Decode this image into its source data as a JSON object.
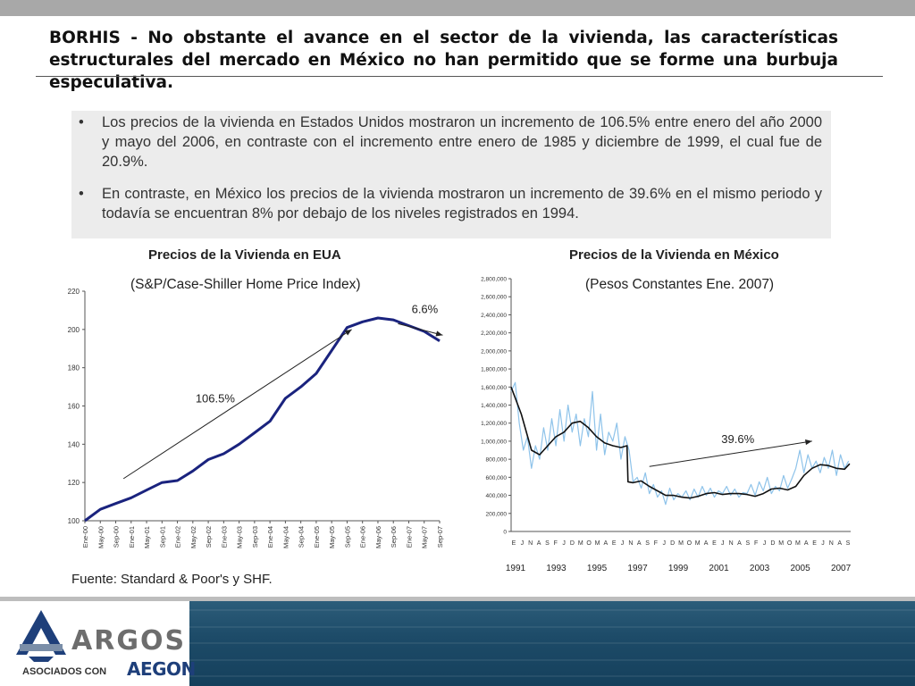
{
  "headline": "BORHIS - No obstante el avance en el sector de la vivienda, las características estructurales del mercado en México no han permitido que se forme una burbuja especulativa.",
  "bullets": [
    "Los precios de la vivienda en Estados Unidos mostraron un incremento de 106.5% entre enero del año 2000 y mayo del 2006, en contraste con el incremento entre enero de 1985 y diciembre de 1999, el cual fue de 20.9%.",
    "En contraste, en México los precios de la vivienda mostraron un incremento de 39.6% en el mismo periodo y todavía se encuentran 8% por debajo de los niveles registrados en 1994."
  ],
  "source": "Fuente: Standard & Poor's y SHF.",
  "logo": {
    "name": "ARGOS",
    "tagline": "ASOCIADOS CON",
    "partner": "AEGON"
  },
  "chart_data": [
    {
      "type": "line",
      "title": "Precios de la Vivienda en EUA",
      "subtitle": "(S&P/Case-Shiller Home Price Index)",
      "color": "#1a237e",
      "ylim": [
        100,
        220
      ],
      "yticks": [
        100,
        120,
        140,
        160,
        180,
        200,
        220
      ],
      "xtick_labels": [
        "Ene-00",
        "May-00",
        "Sep-00",
        "Ene-01",
        "May-01",
        "Sep-01",
        "Ene-02",
        "May-02",
        "Sep-02",
        "Ene-03",
        "May-03",
        "Sep-03",
        "Ene-04",
        "May-04",
        "Sep-04",
        "Ene-05",
        "May-05",
        "Sep-05",
        "Ene-06",
        "May-06",
        "Sep-06",
        "Ene-07",
        "May-07",
        "Sep-07"
      ],
      "series": [
        {
          "x": [
            0,
            1,
            2,
            3,
            4,
            5,
            6,
            7,
            8,
            9,
            10,
            11,
            12,
            13,
            14,
            15,
            16,
            17,
            18,
            19,
            20,
            21,
            22,
            23
          ],
          "values": [
            100,
            106,
            109,
            112,
            116,
            120,
            121,
            126,
            132,
            135,
            140,
            146,
            152,
            164,
            170,
            177,
            189,
            201,
            204,
            206,
            205,
            202,
            199,
            194
          ]
        }
      ],
      "annotations": [
        {
          "text": "106.5%",
          "from": [
            2.5,
            122
          ],
          "to": [
            17.3,
            200
          ]
        },
        {
          "text": "6.6%",
          "from": [
            20.3,
            203
          ],
          "to": [
            23.2,
            197
          ]
        }
      ]
    },
    {
      "type": "line",
      "title": "Precios de la Vivienda en México",
      "subtitle": "(Pesos Constantes Ene. 2007)",
      "ylim": [
        0,
        2800000
      ],
      "yticks": [
        0,
        200000,
        400000,
        600000,
        800000,
        1000000,
        1200000,
        1400000,
        1600000,
        1800000,
        2000000,
        2200000,
        2400000,
        2600000,
        2800000
      ],
      "ytick_labels": [
        "0",
        "200,000",
        "400,000",
        "600,000",
        "800,000",
        "1,000,000",
        "1,200,000",
        "1,400,000",
        "1,600,000",
        "1,800,000",
        "2,000,000",
        "2,200,000",
        "2,400,000",
        "2,600,000",
        "2,800,000"
      ],
      "month_labels": [
        "E",
        "J",
        "N",
        "A",
        "S",
        "F",
        "J",
        "D",
        "M",
        "O",
        "M",
        "A",
        "E",
        "J",
        "N",
        "A",
        "S",
        "F",
        "J",
        "D",
        "M",
        "O",
        "M",
        "A",
        "E",
        "J",
        "N",
        "A",
        "S",
        "F",
        "J",
        "D",
        "M",
        "O",
        "M",
        "A",
        "E",
        "J",
        "N",
        "A",
        "S"
      ],
      "year_labels": [
        "1991",
        "1993",
        "1995",
        "1997",
        "1999",
        "2001",
        "2003",
        "2005",
        "2007"
      ],
      "xlim": [
        1991,
        2007.7
      ],
      "series": [
        {
          "style": "raw",
          "color": "#8ec3ea",
          "x": [
            1991.0,
            1991.2,
            1991.4,
            1991.6,
            1991.8,
            1992.0,
            1992.2,
            1992.4,
            1992.6,
            1992.8,
            1993.0,
            1993.2,
            1993.4,
            1993.6,
            1993.8,
            1994.0,
            1994.2,
            1994.4,
            1994.6,
            1994.8,
            1995.0,
            1995.2,
            1995.4,
            1995.6,
            1995.8,
            1996.0,
            1996.2,
            1996.4,
            1996.6,
            1996.8,
            1997.0,
            1997.2,
            1997.4,
            1997.6,
            1997.8,
            1998.0,
            1998.2,
            1998.4,
            1998.6,
            1998.8,
            1999.0,
            1999.2,
            1999.4,
            1999.6,
            1999.8,
            2000.0,
            2000.2,
            2000.4,
            2000.6,
            2000.8,
            2001.0,
            2001.2,
            2001.4,
            2001.6,
            2001.8,
            2002.0,
            2002.2,
            2002.4,
            2002.6,
            2002.8,
            2003.0,
            2003.2,
            2003.4,
            2003.6,
            2003.8,
            2004.0,
            2004.2,
            2004.4,
            2004.6,
            2004.8,
            2005.0,
            2005.2,
            2005.4,
            2005.6,
            2005.8,
            2006.0,
            2006.2,
            2006.4,
            2006.6,
            2006.8,
            2007.0,
            2007.2,
            2007.4,
            2007.6
          ],
          "values": [
            1550000,
            1650000,
            1200000,
            900000,
            1050000,
            700000,
            950000,
            800000,
            1150000,
            900000,
            1250000,
            950000,
            1350000,
            1000000,
            1400000,
            1100000,
            1300000,
            950000,
            1250000,
            1050000,
            1550000,
            900000,
            1300000,
            850000,
            1100000,
            1000000,
            1200000,
            800000,
            1050000,
            900000,
            550000,
            600000,
            480000,
            650000,
            420000,
            520000,
            380000,
            450000,
            300000,
            480000,
            350000,
            420000,
            380000,
            450000,
            350000,
            470000,
            380000,
            500000,
            400000,
            480000,
            380000,
            450000,
            420000,
            500000,
            400000,
            470000,
            380000,
            430000,
            420000,
            520000,
            400000,
            550000,
            450000,
            600000,
            420000,
            500000,
            450000,
            620000,
            480000,
            580000,
            700000,
            900000,
            650000,
            850000,
            700000,
            780000,
            650000,
            820000,
            700000,
            900000,
            620000,
            850000,
            700000,
            780000
          ]
        },
        {
          "style": "trend",
          "color": "#111111",
          "x": [
            1991.0,
            1991.5,
            1992.0,
            1992.4,
            1992.8,
            1993.2,
            1993.6,
            1994.0,
            1994.4,
            1994.8,
            1995.2,
            1995.6,
            1996.0,
            1996.4,
            1996.7,
            1996.75,
            1997.0,
            1997.4,
            1997.8,
            1998.2,
            1998.6,
            1999.0,
            1999.4,
            1999.8,
            2000.2,
            2000.6,
            2001.0,
            2001.4,
            2001.8,
            2002.2,
            2002.6,
            2003.0,
            2003.4,
            2003.8,
            2004.2,
            2004.6,
            2005.0,
            2005.4,
            2005.8,
            2006.2,
            2006.6,
            2007.0,
            2007.4,
            2007.65
          ],
          "values": [
            1600000,
            1300000,
            900000,
            850000,
            950000,
            1050000,
            1100000,
            1200000,
            1220000,
            1150000,
            1050000,
            980000,
            950000,
            930000,
            950000,
            550000,
            540000,
            560000,
            500000,
            450000,
            400000,
            400000,
            380000,
            370000,
            390000,
            420000,
            430000,
            410000,
            420000,
            420000,
            410000,
            390000,
            420000,
            470000,
            480000,
            460000,
            500000,
            620000,
            700000,
            740000,
            730000,
            700000,
            690000,
            750000
          ]
        }
      ],
      "annotations": [
        {
          "text": "39.6%",
          "from": [
            1997.8,
            720000
          ],
          "to": [
            2005.8,
            1000000
          ]
        }
      ]
    }
  ]
}
